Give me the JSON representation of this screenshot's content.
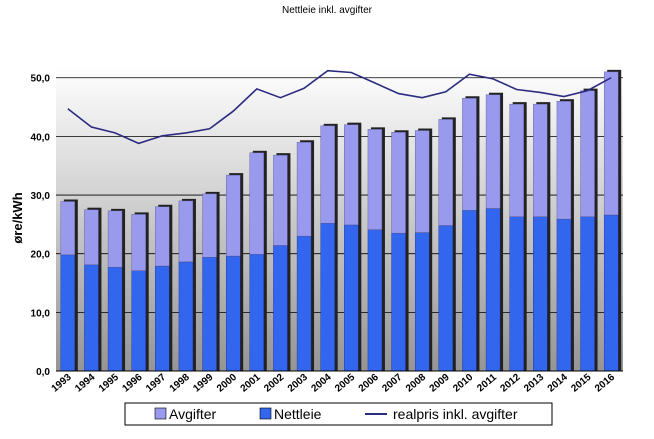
{
  "chart_data": {
    "type": "bar",
    "title": "Nettleie inkl. avgifter",
    "xlabel": "",
    "ylabel": "øre/kWh",
    "ylim": [
      0,
      52
    ],
    "yticks": [
      "0,0",
      "10,0",
      "20,0",
      "30,0",
      "40,0",
      "50,0"
    ],
    "stacked": true,
    "grid": true,
    "legend_position": "bottom",
    "categories": [
      "1993",
      "1994",
      "1995",
      "1996",
      "1997",
      "1998",
      "1999",
      "2000",
      "2001",
      "2002",
      "2003",
      "2004",
      "2005",
      "2006",
      "2007",
      "2008",
      "2009",
      "2010",
      "2011",
      "2012",
      "2013",
      "2014",
      "2015",
      "2016"
    ],
    "series": [
      {
        "name": "Nettleie",
        "kind": "bar",
        "color": "#3366ee",
        "values": [
          19.8,
          18.1,
          17.7,
          17.1,
          17.9,
          18.6,
          19.4,
          19.6,
          19.9,
          21.4,
          23.0,
          25.2,
          24.9,
          24.1,
          23.5,
          23.6,
          24.8,
          27.4,
          27.7,
          26.3,
          26.3,
          25.9,
          26.3,
          26.6
        ]
      },
      {
        "name": "Avgifter",
        "kind": "bar",
        "color": "#9999ee",
        "values": [
          9.1,
          9.4,
          9.6,
          9.6,
          10.1,
          10.4,
          10.8,
          13.8,
          17.3,
          15.4,
          16.0,
          16.6,
          17.1,
          17.1,
          17.2,
          17.4,
          18.1,
          19.1,
          19.4,
          19.2,
          19.2,
          20.1,
          21.5,
          24.4
        ]
      },
      {
        "name": "realpris inkl. avgifter",
        "kind": "line",
        "color": "#2b2b80",
        "values": [
          44.7,
          41.6,
          40.6,
          38.8,
          40.1,
          40.6,
          41.3,
          44.3,
          48.1,
          46.6,
          48.2,
          51.2,
          50.9,
          49.1,
          47.3,
          46.6,
          47.6,
          50.6,
          49.8,
          48.0,
          47.5,
          46.8,
          47.8,
          50.0
        ]
      }
    ],
    "legend": [
      {
        "label": "Avgifter",
        "color": "#9999ee",
        "shape": "box"
      },
      {
        "label": "Nettleie",
        "color": "#3366ee",
        "shape": "box"
      },
      {
        "label": "realpris inkl. avgifter",
        "color": "#2b2b80",
        "shape": "line"
      }
    ]
  }
}
